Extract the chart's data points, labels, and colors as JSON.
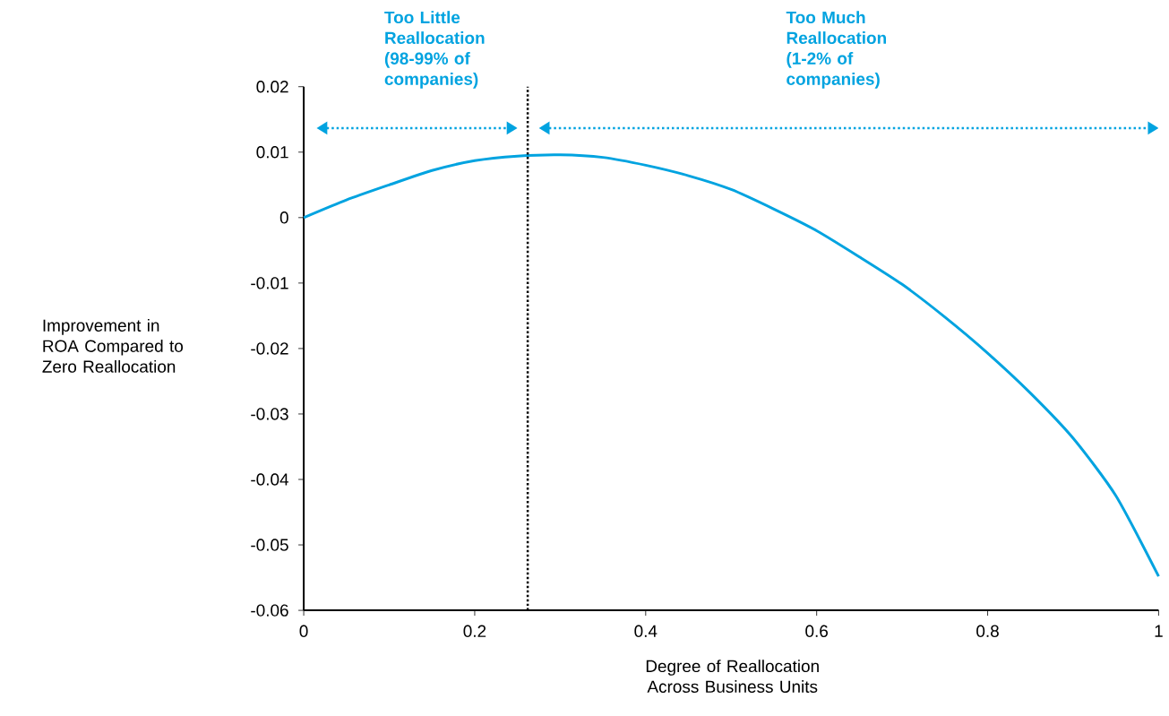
{
  "chart_data": {
    "type": "line",
    "xlabel": "Degree of Reallocation Across Business Units",
    "ylabel": "Improvement in ROA Compared to Zero Reallocation",
    "x": [
      0,
      0.05,
      0.1,
      0.15,
      0.2,
      0.25,
      0.3,
      0.35,
      0.4,
      0.45,
      0.5,
      0.55,
      0.6,
      0.65,
      0.7,
      0.75,
      0.8,
      0.85,
      0.9,
      0.95,
      1
    ],
    "series": [
      {
        "color": "#00a3e0",
        "values": [
          0,
          0.0027,
          0.005,
          0.0072,
          0.0087,
          0.0094,
          0.0096,
          0.0092,
          0.008,
          0.0064,
          0.0043,
          0.0013,
          -0.002,
          -0.006,
          -0.0102,
          -0.0152,
          -0.0207,
          -0.0268,
          -0.0337,
          -0.0425,
          -0.0548
        ]
      }
    ],
    "xlim": [
      0,
      1
    ],
    "ylim": [
      -0.06,
      0.02
    ],
    "xticks": [
      0,
      0.2,
      0.4,
      0.6,
      0.8,
      1
    ],
    "yticks": [
      -0.06,
      -0.05,
      -0.04,
      -0.03,
      -0.02,
      -0.01,
      0,
      0.01,
      0.02
    ],
    "ref_lines": [
      {
        "axis": "x",
        "value": 0.262,
        "color": "#000000",
        "line_style": "dotted"
      }
    ],
    "annotations": [
      "Too Little Reallocation (98-99% of companies)",
      "Too Much Reallocation (1-2% of companies)"
    ],
    "grid": false,
    "marker": "none",
    "line_style": "solid"
  }
}
